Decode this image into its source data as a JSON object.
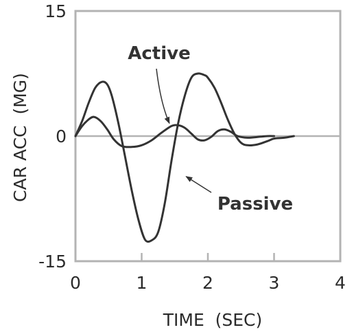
{
  "chart_data": {
    "type": "line",
    "title": "",
    "xlabel": "TIME  (SEC)",
    "ylabel": "CAR ACC  (MG)",
    "xlim": [
      0,
      4
    ],
    "ylim": [
      -15,
      15
    ],
    "x_ticks": [
      "0",
      "1",
      "2",
      "3",
      "4"
    ],
    "y_ticks": [
      "15",
      "0",
      "-15"
    ],
    "grid": false,
    "legend": "none",
    "colors": {
      "frame": "#b3b3b3",
      "curve": "#333333",
      "text": "#2b2b2b"
    },
    "series": [
      {
        "name": "Passive",
        "x": [
          0,
          0.1,
          0.2,
          0.3,
          0.4,
          0.48,
          0.55,
          0.65,
          0.75,
          0.85,
          0.95,
          1.05,
          1.15,
          1.25,
          1.35,
          1.45,
          1.55,
          1.65,
          1.75,
          1.85,
          1.95,
          2.0,
          2.1,
          2.2,
          2.3,
          2.4,
          2.5,
          2.6,
          2.75,
          2.9,
          3.0,
          3.15,
          3.3
        ],
        "values": [
          0,
          1.8,
          4,
          5.8,
          6.5,
          6.2,
          4.8,
          1.5,
          -2.5,
          -6.5,
          -10,
          -12.4,
          -12.5,
          -11.5,
          -8,
          -3,
          1.5,
          4.8,
          7,
          7.5,
          7.3,
          7,
          5.8,
          4,
          2,
          0.3,
          -0.8,
          -1.1,
          -1,
          -0.6,
          -0.3,
          -0.2,
          0
        ]
      },
      {
        "name": "Active",
        "x": [
          0,
          0.1,
          0.2,
          0.28,
          0.38,
          0.48,
          0.58,
          0.7,
          0.85,
          1.0,
          1.15,
          1.3,
          1.45,
          1.55,
          1.65,
          1.75,
          1.85,
          1.95,
          2.05,
          2.15,
          2.25,
          2.35,
          2.45,
          2.6,
          2.75,
          2.9,
          3.0
        ],
        "values": [
          0,
          1.2,
          2,
          2.3,
          1.8,
          0.8,
          -0.4,
          -1.2,
          -1.3,
          -1.1,
          -0.5,
          0.4,
          1.2,
          1.3,
          1,
          0.3,
          -0.4,
          -0.5,
          -0.1,
          0.6,
          0.8,
          0.5,
          0,
          -0.2,
          -0.1,
          0,
          0
        ]
      }
    ],
    "annotations": [
      {
        "text": "Active",
        "target_series": "Active",
        "target_x": 1.45,
        "target_y": 1.2
      },
      {
        "text": "Passive",
        "target_series": "Passive",
        "target_x": 1.65,
        "target_y": -5
      }
    ]
  }
}
